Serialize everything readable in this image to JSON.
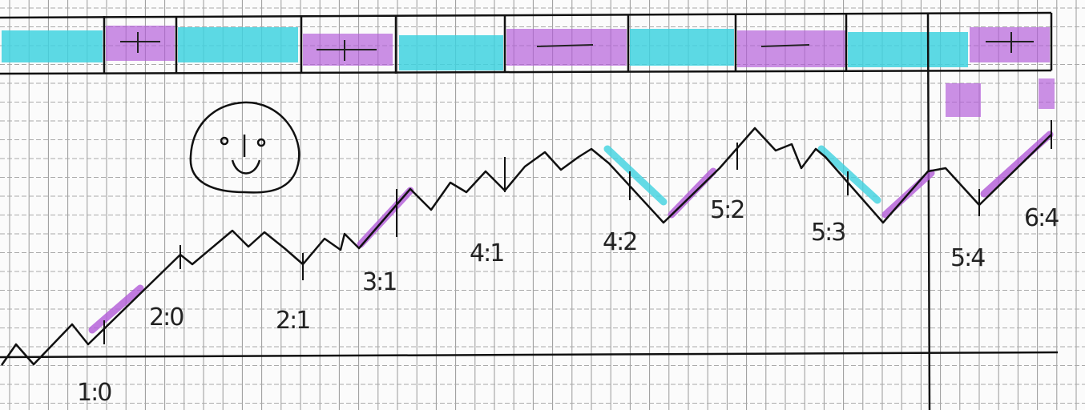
{
  "score_labels": [
    "1:0",
    "2:0",
    "2:1",
    "3:1",
    "4:1",
    "4:2",
    "5:2",
    "5:3",
    "5:4",
    "6:4"
  ]
}
